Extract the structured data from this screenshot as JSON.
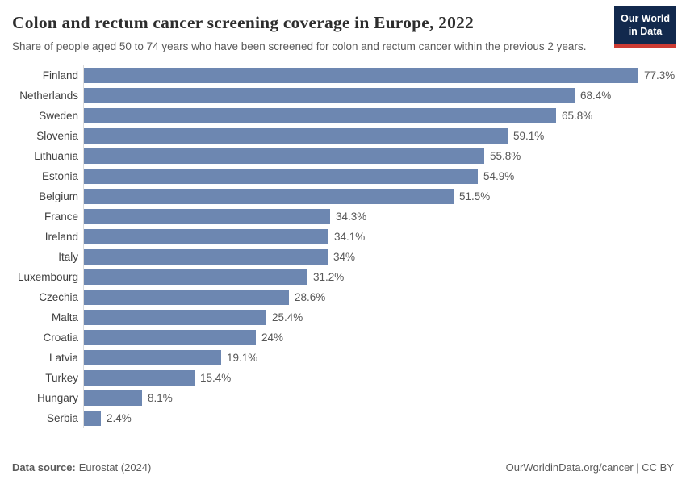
{
  "header": {
    "title": "Colon and rectum cancer screening coverage in Europe, 2022",
    "subtitle": "Share of people aged 50 to 74 years who have been screened for colon and rectum cancer within the previous 2 years.",
    "logo": {
      "line1": "Our World",
      "line2": "in Data"
    }
  },
  "chart_data": {
    "type": "bar",
    "orientation": "horizontal",
    "title": "Colon and rectum cancer screening coverage in Europe, 2022",
    "xlabel": "",
    "ylabel": "",
    "xlim": [
      0,
      80
    ],
    "grid": false,
    "legend": false,
    "bar_color": "#6d87b1",
    "categories": [
      "Finland",
      "Netherlands",
      "Sweden",
      "Slovenia",
      "Lithuania",
      "Estonia",
      "Belgium",
      "France",
      "Ireland",
      "Italy",
      "Luxembourg",
      "Czechia",
      "Malta",
      "Croatia",
      "Latvia",
      "Turkey",
      "Hungary",
      "Serbia"
    ],
    "values": [
      77.3,
      68.4,
      65.8,
      59.1,
      55.8,
      54.9,
      51.5,
      34.3,
      34.1,
      34,
      31.2,
      28.6,
      25.4,
      24,
      19.1,
      15.4,
      8.1,
      2.4
    ],
    "value_labels": [
      "77.3%",
      "68.4%",
      "65.8%",
      "59.1%",
      "55.8%",
      "54.9%",
      "51.5%",
      "34.3%",
      "34.1%",
      "34%",
      "31.2%",
      "28.6%",
      "25.4%",
      "24%",
      "19.1%",
      "15.4%",
      "8.1%",
      "2.4%"
    ]
  },
  "footer": {
    "source_label": "Data source:",
    "source_value": "Eurostat (2024)",
    "url": "OurWorldinData.org/cancer",
    "separator": " | ",
    "license": "CC BY"
  },
  "colors": {
    "bar": "#6d87b1",
    "axis_line": "#dcdcdc",
    "logo_bg": "#12294d",
    "logo_stripe": "#cc3b33",
    "title_text": "#2d2d2d",
    "muted_text": "#5a5a5a"
  }
}
